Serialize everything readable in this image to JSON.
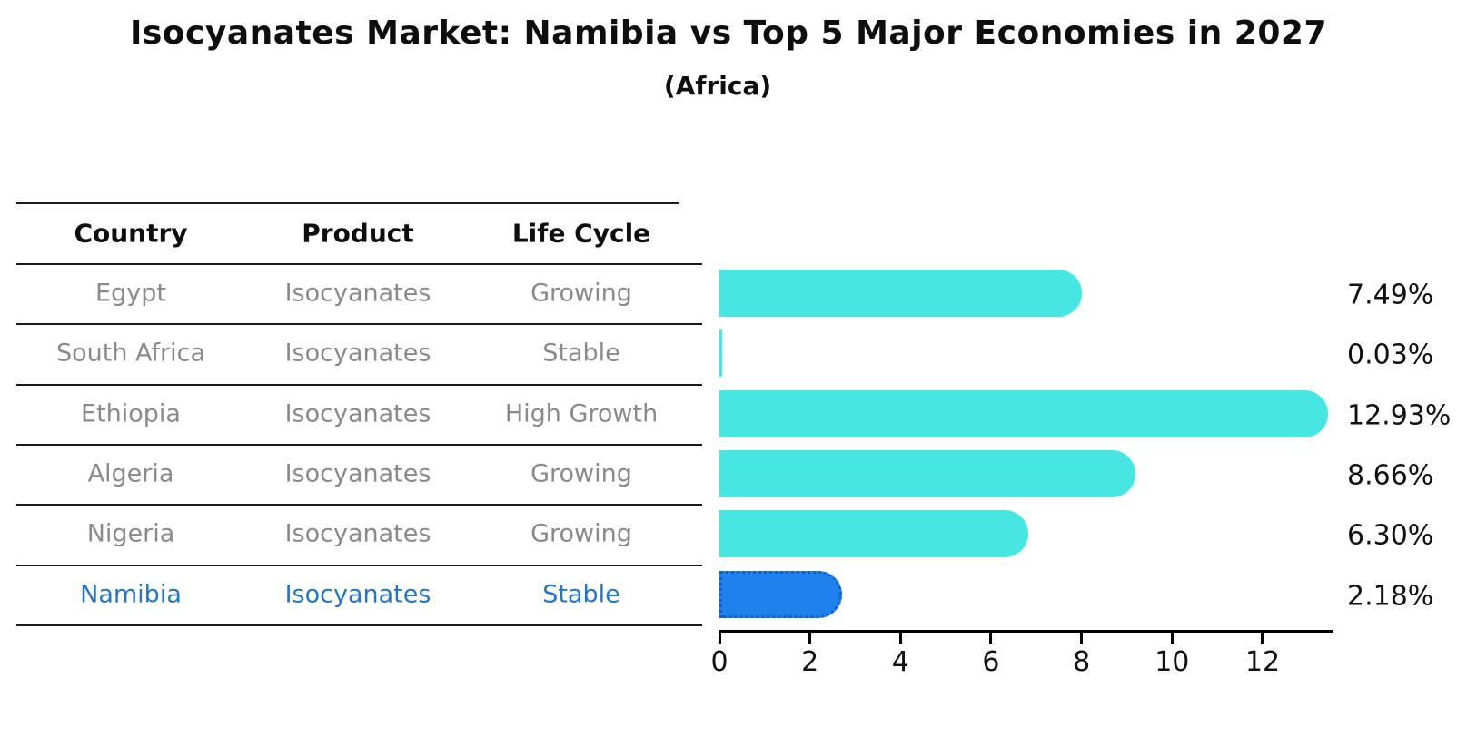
{
  "table": {
    "headers": [
      "Country",
      "Product",
      "Life Cycle"
    ],
    "rows": [
      {
        "country": "Egypt",
        "product": "Isocyanates",
        "life_cycle": "Growing",
        "highlight": false
      },
      {
        "country": "South Africa",
        "product": "Isocyanates",
        "life_cycle": "Stable",
        "highlight": false
      },
      {
        "country": "Ethiopia",
        "product": "Isocyanates",
        "life_cycle": "High Growth",
        "highlight": false
      },
      {
        "country": "Algeria",
        "product": "Isocyanates",
        "life_cycle": "Growing",
        "highlight": false
      },
      {
        "country": "Nigeria",
        "product": "Isocyanates",
        "life_cycle": "Growing",
        "highlight": false
      },
      {
        "country": "Namibia",
        "product": "Isocyanates",
        "life_cycle": "Stable",
        "highlight": true
      }
    ]
  },
  "chart_data": {
    "type": "bar",
    "orientation": "horizontal",
    "title": "Isocyanates Market: Namibia vs Top 5 Major Economies in 2027",
    "subtitle": "(Africa)",
    "categories": [
      "Egypt",
      "South Africa",
      "Ethiopia",
      "Algeria",
      "Nigeria",
      "Namibia"
    ],
    "values": [
      7.49,
      0.03,
      12.93,
      8.66,
      6.3,
      2.18
    ],
    "value_labels": [
      "7.49%",
      "0.03%",
      "12.93%",
      "8.66%",
      "6.30%",
      "2.18%"
    ],
    "highlight_index": 5,
    "xlabel": "",
    "ylabel": "",
    "xlim": [
      0,
      13.57
    ],
    "xticks": [
      "0",
      "2",
      "4",
      "6",
      "8",
      "10",
      "12"
    ],
    "xtick_values": [
      0,
      2,
      4,
      6,
      8,
      10,
      12
    ],
    "grid": false,
    "legend": "none",
    "colors": {
      "bar_default": "#48E6E3",
      "bar_highlight": "#1E82EE",
      "bar_highlight_border": "#1160C8",
      "row_text": "#8A8A8A",
      "row_text_highlight": "#2176CC",
      "axis_text": "#111111",
      "title_text": "#0E0E0E"
    }
  }
}
